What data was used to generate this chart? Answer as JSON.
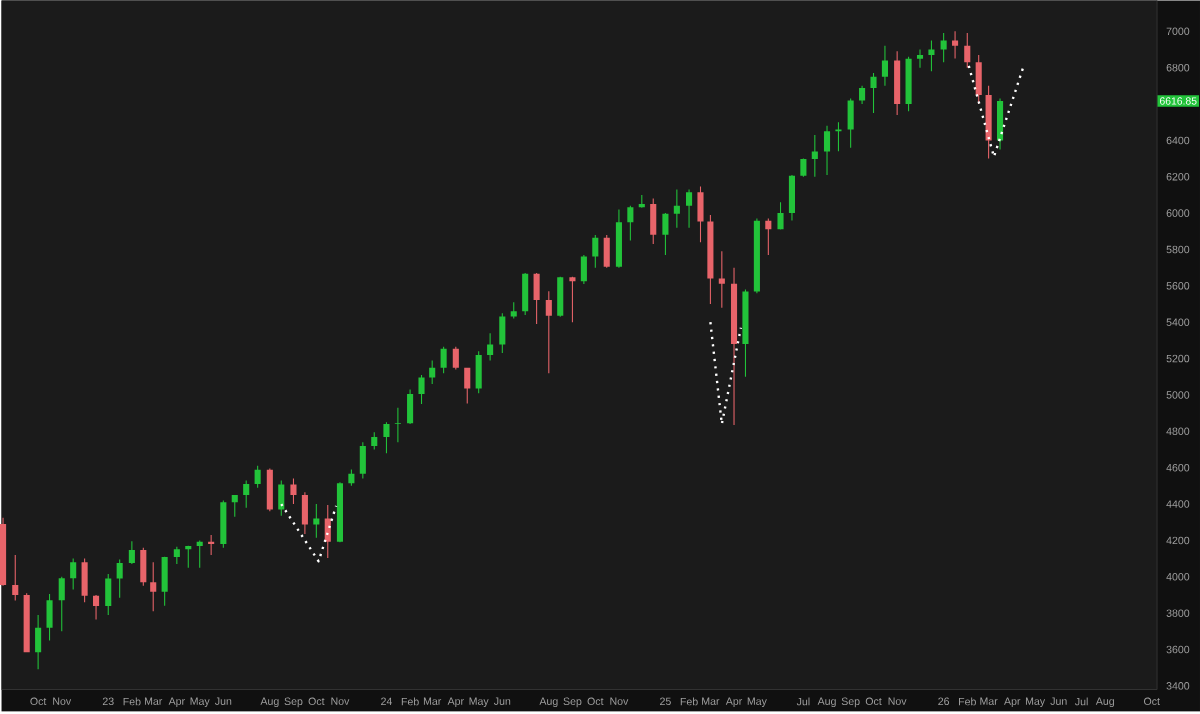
{
  "chart_data": {
    "type": "candlestick",
    "x": [
      "2022-08-16",
      "2022-09-01",
      "2022-09-16",
      "2022-10-01",
      "2022-10-16",
      "2022-11-01",
      "2022-11-16",
      "2022-12-01",
      "2022-12-16",
      "2023-01-01",
      "2023-01-16",
      "2023-02-01",
      "2023-02-16",
      "2023-03-01",
      "2023-03-16",
      "2023-04-01",
      "2023-04-16",
      "2023-05-01",
      "2023-05-16",
      "2023-06-01",
      "2023-06-16",
      "2023-07-01",
      "2023-07-16",
      "2023-08-01",
      "2023-08-16",
      "2023-09-01",
      "2023-09-16",
      "2023-10-01",
      "2023-10-16",
      "2023-11-01",
      "2023-11-16",
      "2023-12-01",
      "2023-12-16",
      "2024-01-01",
      "2024-01-16",
      "2024-02-01",
      "2024-02-16",
      "2024-03-01",
      "2024-03-16",
      "2024-04-01",
      "2024-04-16",
      "2024-05-01",
      "2024-05-16",
      "2024-06-01",
      "2024-06-16",
      "2024-07-01",
      "2024-07-16",
      "2024-08-01",
      "2024-08-16",
      "2024-09-01",
      "2024-09-16",
      "2024-10-01",
      "2024-10-16",
      "2024-11-01",
      "2024-11-16",
      "2024-12-01",
      "2024-12-16",
      "2025-01-01",
      "2025-01-16",
      "2025-02-01",
      "2025-02-16",
      "2025-03-01",
      "2025-03-16",
      "2025-04-01",
      "2025-04-16",
      "2025-05-01",
      "2025-05-16",
      "2025-06-01",
      "2025-06-16",
      "2025-07-01",
      "2025-07-16",
      "2025-08-01",
      "2025-08-16",
      "2025-09-01",
      "2025-09-16",
      "2025-10-01",
      "2025-10-16",
      "2025-11-01",
      "2025-11-16",
      "2025-12-01",
      "2025-12-16",
      "2026-01-01",
      "2026-01-16",
      "2026-02-01",
      "2026-02-16",
      "2026-03-01",
      "2026-03-16"
    ],
    "ohlc": [
      [
        4290,
        4325,
        3950,
        3955
      ],
      [
        3955,
        4120,
        3870,
        3900
      ],
      [
        3900,
        3910,
        3585,
        3585
      ],
      [
        3585,
        3790,
        3491,
        3720
      ],
      [
        3720,
        3905,
        3650,
        3871
      ],
      [
        3871,
        4000,
        3700,
        3992
      ],
      [
        3992,
        4100,
        3930,
        4080
      ],
      [
        4080,
        4100,
        3860,
        3895
      ],
      [
        3895,
        3900,
        3765,
        3839
      ],
      [
        3839,
        4015,
        3790,
        3990
      ],
      [
        3990,
        4095,
        3885,
        4076
      ],
      [
        4076,
        4195,
        4070,
        4147
      ],
      [
        4147,
        4160,
        3950,
        3970
      ],
      [
        3970,
        4080,
        3810,
        3917
      ],
      [
        3917,
        4110,
        3840,
        4109
      ],
      [
        4109,
        4165,
        4070,
        4151
      ],
      [
        4151,
        4170,
        4050,
        4169
      ],
      [
        4169,
        4200,
        4050,
        4192
      ],
      [
        4192,
        4230,
        4120,
        4180
      ],
      [
        4180,
        4420,
        4160,
        4410
      ],
      [
        4410,
        4450,
        4330,
        4450
      ],
      [
        4450,
        4530,
        4380,
        4510
      ],
      [
        4510,
        4610,
        4490,
        4589
      ],
      [
        4589,
        4595,
        4360,
        4370
      ],
      [
        4370,
        4530,
        4335,
        4507
      ],
      [
        4507,
        4540,
        4400,
        4450
      ],
      [
        4450,
        4465,
        4235,
        4288
      ],
      [
        4288,
        4400,
        4215,
        4320
      ],
      [
        4320,
        4395,
        4103,
        4193
      ],
      [
        4193,
        4520,
        4190,
        4514
      ],
      [
        4514,
        4590,
        4500,
        4567
      ],
      [
        4567,
        4740,
        4540,
        4719
      ],
      [
        4719,
        4795,
        4700,
        4769
      ],
      [
        4769,
        4850,
        4680,
        4840
      ],
      [
        4840,
        4930,
        4740,
        4845
      ],
      [
        4845,
        5030,
        4840,
        5005
      ],
      [
        5005,
        5110,
        4950,
        5096
      ],
      [
        5096,
        5190,
        5060,
        5150
      ],
      [
        5150,
        5265,
        5120,
        5254
      ],
      [
        5254,
        5265,
        5140,
        5150
      ],
      [
        5150,
        5150,
        4953,
        5035
      ],
      [
        5035,
        5240,
        5010,
        5220
      ],
      [
        5220,
        5340,
        5190,
        5277
      ],
      [
        5277,
        5450,
        5230,
        5431
      ],
      [
        5431,
        5510,
        5420,
        5460
      ],
      [
        5460,
        5670,
        5440,
        5667
      ],
      [
        5667,
        5670,
        5390,
        5522
      ],
      [
        5522,
        5570,
        5120,
        5435
      ],
      [
        5435,
        5650,
        5430,
        5648
      ],
      [
        5648,
        5650,
        5400,
        5626
      ],
      [
        5626,
        5770,
        5610,
        5762
      ],
      [
        5762,
        5880,
        5700,
        5865
      ],
      [
        5865,
        5880,
        5700,
        5705
      ],
      [
        5705,
        6020,
        5700,
        5950
      ],
      [
        5950,
        6040,
        5850,
        6032
      ],
      [
        6032,
        6100,
        6030,
        6050
      ],
      [
        6050,
        6080,
        5830,
        5881
      ],
      [
        5881,
        6000,
        5770,
        5997
      ],
      [
        5997,
        6130,
        5920,
        6040
      ],
      [
        6040,
        6130,
        5920,
        6115
      ],
      [
        6115,
        6147,
        5840,
        5954
      ],
      [
        5954,
        5990,
        5500,
        5640
      ],
      [
        5640,
        5790,
        5480,
        5611
      ],
      [
        5611,
        5700,
        4835,
        5280
      ],
      [
        5280,
        5580,
        5100,
        5569
      ],
      [
        5569,
        5970,
        5560,
        5958
      ],
      [
        5958,
        5970,
        5770,
        5911
      ],
      [
        5911,
        6060,
        5910,
        6000
      ],
      [
        6000,
        6210,
        5960,
        6205
      ],
      [
        6205,
        6300,
        6200,
        6297
      ],
      [
        6297,
        6430,
        6200,
        6339
      ],
      [
        6339,
        6480,
        6210,
        6450
      ],
      [
        6450,
        6500,
        6340,
        6460
      ],
      [
        6460,
        6630,
        6360,
        6620
      ],
      [
        6620,
        6700,
        6600,
        6688
      ],
      [
        6688,
        6770,
        6550,
        6750
      ],
      [
        6750,
        6920,
        6700,
        6840
      ],
      [
        6840,
        6890,
        6540,
        6600
      ],
      [
        6600,
        6860,
        6560,
        6849
      ],
      [
        6849,
        6900,
        6800,
        6870
      ],
      [
        6870,
        6950,
        6780,
        6900
      ],
      [
        6900,
        6990,
        6830,
        6950
      ],
      [
        6950,
        7000,
        6850,
        6920
      ],
      [
        6920,
        6990,
        6800,
        6830
      ],
      [
        6830,
        6870,
        6600,
        6650
      ],
      [
        6650,
        6700,
        6300,
        6400
      ],
      [
        6400,
        6630,
        6350,
        6616.85
      ]
    ],
    "colors": [
      "#e8646a",
      "#e8646a",
      "#e8646a",
      "#22c33a",
      "#22c33a",
      "#22c33a",
      "#22c33a",
      "#e8646a",
      "#e8646a",
      "#22c33a",
      "#22c33a",
      "#22c33a",
      "#e8646a",
      "#e8646a",
      "#22c33a",
      "#22c33a",
      "#22c33a",
      "#22c33a",
      "#e8646a",
      "#22c33a",
      "#22c33a",
      "#22c33a",
      "#22c33a",
      "#e8646a",
      "#22c33a",
      "#e8646a",
      "#e8646a",
      "#22c33a",
      "#e8646a",
      "#22c33a",
      "#22c33a",
      "#22c33a",
      "#22c33a",
      "#22c33a",
      "#22c33a",
      "#22c33a",
      "#22c33a",
      "#22c33a",
      "#22c33a",
      "#e8646a",
      "#e8646a",
      "#22c33a",
      "#22c33a",
      "#22c33a",
      "#22c33a",
      "#22c33a",
      "#e8646a",
      "#e8646a",
      "#22c33a",
      "#e8646a",
      "#22c33a",
      "#22c33a",
      "#e8646a",
      "#22c33a",
      "#22c33a",
      "#22c33a",
      "#e8646a",
      "#22c33a",
      "#22c33a",
      "#22c33a",
      "#e8646a",
      "#e8646a",
      "#e8646a",
      "#e8646a",
      "#22c33a",
      "#22c33a",
      "#e8646a",
      "#22c33a",
      "#22c33a",
      "#22c33a",
      "#22c33a",
      "#22c33a",
      "#22c33a",
      "#22c33a",
      "#22c33a",
      "#22c33a",
      "#22c33a",
      "#e8646a",
      "#22c33a",
      "#22c33a",
      "#22c33a",
      "#22c33a",
      "#e8646a",
      "#e8646a",
      "#e8646a",
      "#e8646a",
      "#22c33a"
    ],
    "series": [
      {
        "type": "line",
        "color": "#ffffff",
        "line_style": "dotted",
        "x": [
          "2023-08-16",
          "2023-10-04",
          "2023-10-27"
        ],
        "values": [
          4400,
          4085,
          4390
        ]
      },
      {
        "type": "line",
        "color": "#ffffff",
        "line_style": "dotted",
        "x": [
          "2025-03-01",
          "2025-03-16",
          "2025-04-10"
        ],
        "values": [
          5400,
          4840,
          5370
        ]
      },
      {
        "type": "line",
        "color": "#ffffff",
        "line_style": "dotted",
        "x": [
          "2026-02-03",
          "2026-03-08",
          "2026-04-16"
        ],
        "values": [
          6810,
          6310,
          6810
        ]
      }
    ],
    "annotations": [
      "6616.85"
    ],
    "xlim": [
      "2022-08-14",
      "2026-10-08"
    ],
    "xticks": [
      {
        "value": "2022-10",
        "label": "Oct"
      },
      {
        "value": "2022-11",
        "label": "Nov"
      },
      {
        "value": "2023-01",
        "label": "23"
      },
      {
        "value": "2023-02",
        "label": "Feb"
      },
      {
        "value": "2023-03",
        "label": "Mar"
      },
      {
        "value": "2023-04",
        "label": "Apr"
      },
      {
        "value": "2023-05",
        "label": "May"
      },
      {
        "value": "2023-06",
        "label": "Jun"
      },
      {
        "value": "2023-08",
        "label": "Aug"
      },
      {
        "value": "2023-09",
        "label": "Sep"
      },
      {
        "value": "2023-10",
        "label": "Oct"
      },
      {
        "value": "2023-11",
        "label": "Nov"
      },
      {
        "value": "2024-01",
        "label": "24"
      },
      {
        "value": "2024-02",
        "label": "Feb"
      },
      {
        "value": "2024-03",
        "label": "Mar"
      },
      {
        "value": "2024-04",
        "label": "Apr"
      },
      {
        "value": "2024-05",
        "label": "May"
      },
      {
        "value": "2024-06",
        "label": "Jun"
      },
      {
        "value": "2024-08",
        "label": "Aug"
      },
      {
        "value": "2024-09",
        "label": "Sep"
      },
      {
        "value": "2024-10",
        "label": "Oct"
      },
      {
        "value": "2024-11",
        "label": "Nov"
      },
      {
        "value": "2025-01",
        "label": "25"
      },
      {
        "value": "2025-02",
        "label": "Feb"
      },
      {
        "value": "2025-03",
        "label": "Mar"
      },
      {
        "value": "2025-04",
        "label": "Apr"
      },
      {
        "value": "2025-05",
        "label": "May"
      },
      {
        "value": "2025-07",
        "label": "Jul"
      },
      {
        "value": "2025-08",
        "label": "Aug"
      },
      {
        "value": "2025-09",
        "label": "Sep"
      },
      {
        "value": "2025-10",
        "label": "Oct"
      },
      {
        "value": "2025-11",
        "label": "Nov"
      },
      {
        "value": "2026-01",
        "label": "26"
      },
      {
        "value": "2026-02",
        "label": "Feb"
      },
      {
        "value": "2026-03",
        "label": "Mar"
      },
      {
        "value": "2026-04",
        "label": "Apr"
      },
      {
        "value": "2026-05",
        "label": "May"
      },
      {
        "value": "2026-06",
        "label": "Jun"
      },
      {
        "value": "2026-07",
        "label": "Jul"
      },
      {
        "value": "2026-08",
        "label": "Aug"
      },
      {
        "value": "2026-10",
        "label": "Oct"
      }
    ],
    "ylim": [
      3380,
      7170
    ],
    "yticks": [
      3400,
      3600,
      3800,
      4000,
      4200,
      4400,
      4600,
      4800,
      5000,
      5200,
      5400,
      5600,
      5800,
      6000,
      6200,
      6400,
      6800,
      7000
    ]
  }
}
